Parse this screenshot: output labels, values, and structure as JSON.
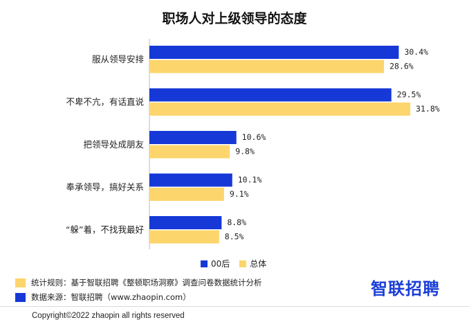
{
  "chart_data": {
    "type": "bar",
    "orientation": "horizontal",
    "title": "职场人对上级领导的态度",
    "categories": [
      "服从领导安排",
      "不卑不亢，有话直说",
      "把领导处成朋友",
      "奉承领导，搞好关系",
      "“躲”着，不找我最好"
    ],
    "series": [
      {
        "name": "00后",
        "color": "#1538d6",
        "values": [
          30.4,
          29.5,
          10.6,
          10.1,
          8.8
        ],
        "labels": [
          "30.4%",
          "29.5%",
          "10.6%",
          "10.1%",
          "8.8%"
        ]
      },
      {
        "name": "总体",
        "color": "#fdd56d",
        "values": [
          28.6,
          31.8,
          9.8,
          9.1,
          8.5
        ],
        "labels": [
          "28.6%",
          "31.8%",
          "9.8%",
          "9.1%",
          "8.5%"
        ]
      }
    ],
    "xlim": [
      0,
      35
    ],
    "legend": "bottom"
  },
  "notes": {
    "rule": "统计规则：基于智联招聘《整顿职场洞察》调查问卷数据统计分析",
    "source": "数据来源：智联招聘（www.zhaopin.com）",
    "rule_color": "#fdd56d",
    "source_color": "#1538d6"
  },
  "brand": "智联招聘",
  "copyright": "Copyright©2022 zhaopin all rights reserved"
}
